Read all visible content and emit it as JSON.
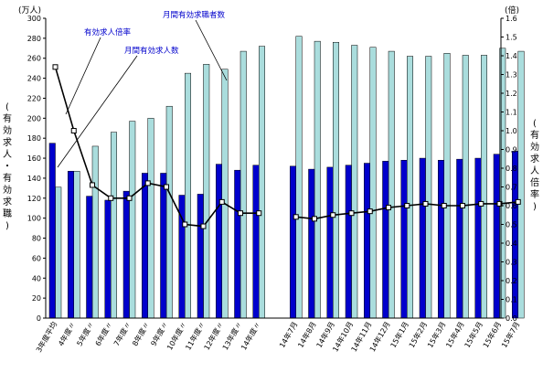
{
  "chart_data": {
    "type": "bar",
    "categories": [
      "3年度平均",
      "4年度〃",
      "5年度〃",
      "6年度〃",
      "7年度〃",
      "8年度〃",
      "9年度〃",
      "10年度〃",
      "11年度〃",
      "12年度〃",
      "13年度〃",
      "14年度〃",
      "14年7月",
      "14年8月",
      "14年9月",
      "14年10月",
      "14年11月",
      "14年12月",
      "15年1月",
      "15年2月",
      "15年3月",
      "15年4月",
      "15年5月",
      "15年6月",
      "15年7月"
    ],
    "series": [
      {
        "name": "月間有効求職者数",
        "axis": "left",
        "kind": "bar",
        "color": "#aadddd",
        "values": [
          131,
          147,
          172,
          186,
          197,
          200,
          212,
          245,
          254,
          249,
          267,
          272,
          282,
          277,
          276,
          273,
          271,
          267,
          262,
          262,
          265,
          263,
          263,
          270,
          267
        ]
      },
      {
        "name": "月間有効求人数",
        "axis": "left",
        "kind": "bar",
        "color": "#0000cc",
        "values": [
          175,
          147,
          122,
          118,
          127,
          145,
          145,
          123,
          124,
          154,
          148,
          153,
          152,
          149,
          151,
          153,
          155,
          157,
          158,
          160,
          158,
          159,
          160,
          164,
          167
        ]
      },
      {
        "name": "有効求人倍率",
        "axis": "right",
        "kind": "line",
        "color": "#000000",
        "values": [
          1.34,
          1.0,
          0.71,
          0.64,
          0.64,
          0.72,
          0.7,
          0.5,
          0.49,
          0.62,
          0.56,
          0.56,
          0.54,
          0.53,
          0.55,
          0.56,
          0.57,
          0.59,
          0.6,
          0.61,
          0.6,
          0.6,
          0.61,
          0.61,
          0.62
        ]
      }
    ],
    "ylim_left": [
      0,
      300
    ],
    "ylim_right": [
      0,
      1.6
    ],
    "yticks_left": [
      "0",
      "20",
      "40",
      "60",
      "80",
      "100",
      "120",
      "140",
      "160",
      "180",
      "200",
      "220",
      "240",
      "260",
      "280",
      "300"
    ],
    "yticks_right": [
      "0.0",
      "0.1",
      "0.2",
      "0.3",
      "0.4",
      "0.5",
      "0.6",
      "0.7",
      "0.8",
      "0.9",
      "1.0",
      "1.1",
      "1.2",
      "1.3",
      "1.4",
      "1.5",
      "1.6"
    ],
    "left_unit": "(万人)",
    "right_unit": "(倍)",
    "left_axis_label": [
      "(",
      "有",
      "効",
      "求",
      "人",
      "・",
      "有",
      "効",
      "求",
      "職",
      ")"
    ],
    "right_axis_label": [
      "(",
      "有",
      "効",
      "求",
      "人",
      "倍",
      "率",
      ")"
    ],
    "annotations": {
      "ratio": "有効求人倍率",
      "offers": "月間有効求人数",
      "seekers": "月間有効求職者数"
    },
    "grid": false
  }
}
